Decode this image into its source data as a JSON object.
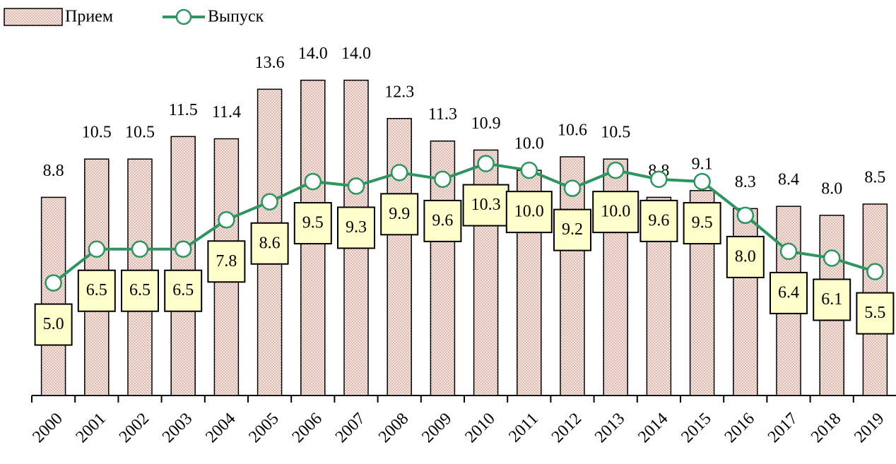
{
  "chart_data": {
    "type": "bar-line",
    "categories": [
      "2000",
      "2001",
      "2002",
      "2003",
      "2004",
      "2005",
      "2006",
      "2007",
      "2008",
      "2009",
      "2010",
      "2011",
      "2012",
      "2013",
      "2014",
      "2015",
      "2016",
      "2017",
      "2018",
      "2019"
    ],
    "series": [
      {
        "name": "Прием",
        "type": "bar",
        "color": "#f6e6df",
        "values": [
          8.8,
          10.5,
          10.5,
          11.5,
          11.4,
          13.6,
          14.0,
          14.0,
          12.3,
          11.3,
          10.9,
          10.0,
          10.6,
          10.5,
          8.8,
          9.1,
          8.3,
          8.4,
          8.0,
          8.5
        ],
        "value_labels": [
          "8.8",
          "10.5",
          "10.5",
          "11.5",
          "11.4",
          "13.6",
          "14.0",
          "14.0",
          "12.3",
          "11.3",
          "10.9",
          "10.0",
          "10.6",
          "10.5",
          "8.8",
          "9.1",
          "8.3",
          "8.4",
          "8.0",
          "8.5"
        ]
      },
      {
        "name": "Выпуск",
        "type": "line",
        "color": "#2e9460",
        "values": [
          5.0,
          6.5,
          6.5,
          6.5,
          7.8,
          8.6,
          9.5,
          9.3,
          9.9,
          9.6,
          10.3,
          10.0,
          9.2,
          10.0,
          9.6,
          9.5,
          8.0,
          6.4,
          6.1,
          5.5
        ],
        "value_labels": [
          "5.0",
          "6.5",
          "6.5",
          "6.5",
          "7.8",
          "8.6",
          "9.5",
          "9.3",
          "9.9",
          "9.6",
          "10.3",
          "10.0",
          "9.2",
          "10.0",
          "9.6",
          "9.5",
          "8.0",
          "6.4",
          "6.1",
          "5.5"
        ]
      }
    ],
    "ylim": [
      0,
      17.5
    ],
    "legend": "top-left"
  }
}
